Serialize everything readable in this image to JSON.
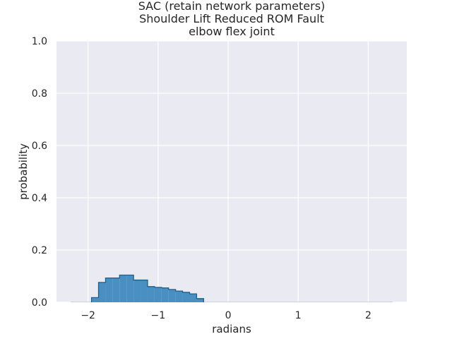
{
  "chart_data": {
    "type": "bar",
    "title_lines": [
      "SAC (retain network parameters)",
      "Shoulder Lift Reduced ROM Fault",
      "elbow flex joint"
    ],
    "xlabel": "radians",
    "ylabel": "probability",
    "xlim": [
      -2.45,
      2.55
    ],
    "ylim": [
      0,
      1.0
    ],
    "xticks": [
      -2,
      -1,
      0,
      1,
      2
    ],
    "xtick_labels": [
      "−2",
      "−1",
      "0",
      "1",
      "2"
    ],
    "yticks": [
      0.0,
      0.2,
      0.4,
      0.6,
      0.8,
      1.0
    ],
    "ytick_labels": [
      "0.0",
      "0.2",
      "0.4",
      "0.6",
      "0.8",
      "1.0"
    ],
    "grid": true,
    "colors": {
      "background": "#eaeaf2",
      "grid": "#ffffff",
      "bar_fill": "#4a8fc2",
      "bar_edge": "#1f5f8b"
    },
    "bins": {
      "edges": [
        -1.95,
        -1.85,
        -1.75,
        -1.65,
        -1.55,
        -1.45,
        -1.35,
        -1.25,
        -1.15,
        -1.05,
        -0.95,
        -0.85,
        -0.75,
        -0.65,
        -0.55,
        -0.45,
        -0.35
      ],
      "values": [
        0.018,
        0.076,
        0.093,
        0.093,
        0.104,
        0.104,
        0.085,
        0.085,
        0.06,
        0.057,
        0.055,
        0.049,
        0.043,
        0.038,
        0.032,
        0.014
      ]
    },
    "baseline": [
      -2.25,
      2.35
    ]
  }
}
